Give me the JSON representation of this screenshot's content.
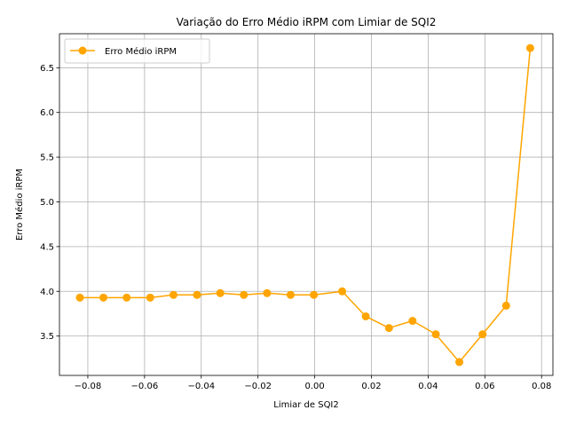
{
  "chart_data": {
    "type": "line",
    "title": "Variação do Erro Médio iRPM com Limiar de SQI2",
    "xlabel": "Limiar de SQI2",
    "ylabel": "Erro Médio iRPM",
    "xlim": [
      -0.09,
      0.084
    ],
    "ylim": [
      3.06,
      6.88
    ],
    "xticks": [
      -0.08,
      -0.06,
      -0.04,
      -0.02,
      0.0,
      0.02,
      0.04,
      0.06,
      0.08
    ],
    "xtick_labels": [
      "−0.08",
      "−0.06",
      "−0.04",
      "−0.02",
      "0.00",
      "0.02",
      "0.04",
      "0.06",
      "0.08"
    ],
    "yticks": [
      3.5,
      4.0,
      4.5,
      5.0,
      5.5,
      6.0,
      6.5
    ],
    "ytick_labels": [
      "3.5",
      "4.0",
      "4.5",
      "5.0",
      "5.5",
      "6.0",
      "6.5"
    ],
    "grid": true,
    "legend_position": "upper-left",
    "series": [
      {
        "name": "Erro Médio iRPM",
        "color": "#ffa500",
        "marker": "circle",
        "x": [
          -0.0828,
          -0.0745,
          -0.0663,
          -0.058,
          -0.0498,
          -0.0415,
          -0.0333,
          -0.025,
          -0.0168,
          -0.0085,
          -0.0003,
          0.0097,
          0.018,
          0.0262,
          0.0345,
          0.0427,
          0.051,
          0.0592,
          0.0675,
          0.076
        ],
        "y": [
          3.93,
          3.93,
          3.93,
          3.93,
          3.96,
          3.96,
          3.98,
          3.96,
          3.98,
          3.96,
          3.96,
          4.0,
          3.72,
          3.59,
          3.67,
          3.52,
          3.21,
          3.52,
          3.84,
          6.72
        ]
      }
    ]
  }
}
